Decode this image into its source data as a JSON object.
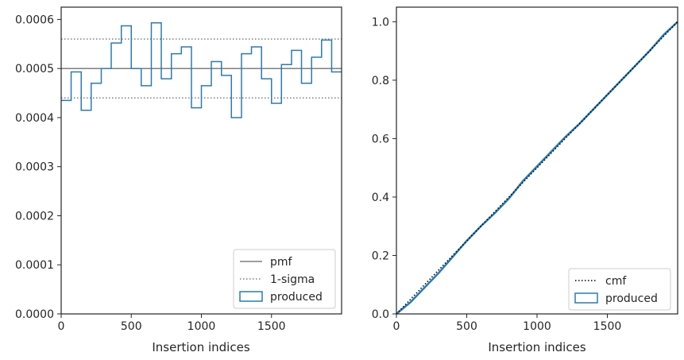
{
  "chart_data": [
    {
      "type": "line",
      "xlabel": "Insertion indices",
      "ylabel": "",
      "xlim": [
        0,
        2000
      ],
      "ylim": [
        0,
        0.000625
      ],
      "xticks": [
        0,
        500,
        1000,
        1500
      ],
      "xtick_labels": [
        "0",
        "500",
        "1000",
        "1500"
      ],
      "yticks": [
        0,
        0.0001,
        0.0002,
        0.0003,
        0.0004,
        0.0005,
        0.0006
      ],
      "ytick_labels": [
        "0.0000",
        "0.0001",
        "0.0002",
        "0.0003",
        "0.0004",
        "0.0005",
        "0.0006"
      ],
      "grid": false,
      "legend_position": "lower-right",
      "reference_lines": [
        {
          "name": "pmf",
          "y": 0.0005,
          "style": "solid",
          "color": "#7f7f7f"
        },
        {
          "name": "1-sigma",
          "y": 0.00056,
          "style": "dotted",
          "color": "#7f7f7f"
        },
        {
          "name": "1-sigma",
          "y": 0.00044,
          "style": "dotted",
          "color": "#7f7f7f"
        }
      ],
      "series": [
        {
          "name": "produced",
          "style": "step",
          "color": "#2a7bb2",
          "bin_edges": [
            0,
            71,
            143,
            214,
            286,
            357,
            429,
            500,
            571,
            643,
            714,
            786,
            857,
            929,
            1000,
            1071,
            1143,
            1214,
            1286,
            1357,
            1429,
            1500,
            1571,
            1643,
            1714,
            1786,
            1857,
            1929,
            2000
          ],
          "values": [
            0.000435,
            0.000493,
            0.000415,
            0.00047,
            0.0005,
            0.000552,
            0.000587,
            0.0005,
            0.000465,
            0.000593,
            0.000479,
            0.00053,
            0.000544,
            0.00042,
            0.000465,
            0.000514,
            0.000486,
            0.0004,
            0.00053,
            0.000544,
            0.000479,
            0.000429,
            0.000508,
            0.000537,
            0.00047,
            0.000523,
            0.000558,
            0.000493
          ]
        }
      ],
      "legend": [
        {
          "label": "pmf",
          "kind": "solid-line"
        },
        {
          "label": "1-sigma",
          "kind": "dotted-line"
        },
        {
          "label": "produced",
          "kind": "box"
        }
      ]
    },
    {
      "type": "line",
      "xlabel": "Insertion indices",
      "ylabel": "",
      "xlim": [
        0,
        2000
      ],
      "ylim": [
        0,
        1.05
      ],
      "xticks": [
        0,
        500,
        1000,
        1500
      ],
      "xtick_labels": [
        "0",
        "500",
        "1000",
        "1500"
      ],
      "yticks": [
        0,
        0.2,
        0.4,
        0.6,
        0.8,
        1.0
      ],
      "ytick_labels": [
        "0.0",
        "0.2",
        "0.4",
        "0.6",
        "0.8",
        "1.0"
      ],
      "grid": false,
      "legend_position": "lower-right",
      "series": [
        {
          "name": "cmf",
          "style": "dotted",
          "color": "#000000",
          "x": [
            0,
            2000
          ],
          "y": [
            0,
            1.0
          ]
        },
        {
          "name": "produced",
          "style": "step",
          "color": "#2a7bb2",
          "x": [
            0,
            50,
            100,
            150,
            200,
            300,
            400,
            500,
            600,
            700,
            800,
            900,
            1000,
            1100,
            1200,
            1300,
            1400,
            1500,
            1600,
            1700,
            1800,
            1900,
            2000
          ],
          "y": [
            0,
            0.02,
            0.04,
            0.065,
            0.09,
            0.14,
            0.195,
            0.25,
            0.3,
            0.345,
            0.395,
            0.455,
            0.505,
            0.555,
            0.605,
            0.65,
            0.7,
            0.75,
            0.8,
            0.85,
            0.9,
            0.955,
            1.0
          ]
        }
      ],
      "legend": [
        {
          "label": "cmf",
          "kind": "dotted-line"
        },
        {
          "label": "produced",
          "kind": "box"
        }
      ]
    }
  ]
}
